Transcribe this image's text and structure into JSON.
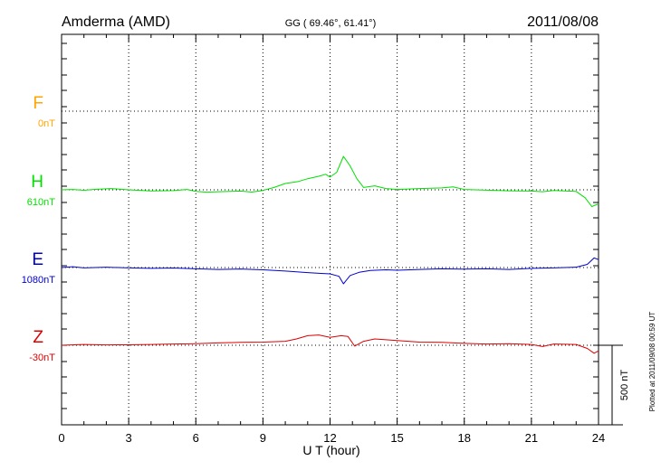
{
  "header": {
    "station": "Amderma (AMD)",
    "coords": "GG ( 69.46°,  61.41°)",
    "date": "2011/08/08"
  },
  "side_note": "Plotted at 2011/09/08 00:59 UT",
  "scale_label": "500 nT",
  "chart_data": {
    "type": "line",
    "xlabel": "U T (hour)",
    "xlim": [
      0,
      24
    ],
    "xticks": [
      0,
      3,
      6,
      9,
      12,
      15,
      18,
      21,
      24
    ],
    "xtick_labels": [
      "0",
      "3",
      "6",
      "9",
      "12",
      "15",
      "18",
      "21",
      "24"
    ],
    "grid": true,
    "scale_bar_nT": 500,
    "series": [
      {
        "name": "F",
        "base_label": "0nT",
        "color": "#ffa500",
        "baseline_nT": 0,
        "points": []
      },
      {
        "name": "H",
        "base_label": "610nT",
        "color": "#00e000",
        "baseline_nT": 610,
        "points": [
          [
            0,
            610
          ],
          [
            0.5,
            612
          ],
          [
            1,
            607
          ],
          [
            1.5,
            613
          ],
          [
            2.2,
            618
          ],
          [
            3,
            610
          ],
          [
            4,
            603
          ],
          [
            5,
            605
          ],
          [
            5.6,
            612
          ],
          [
            6,
            600
          ],
          [
            6.5,
            595
          ],
          [
            7,
            598
          ],
          [
            8,
            602
          ],
          [
            8.5,
            596
          ],
          [
            9,
            606
          ],
          [
            9.5,
            625
          ],
          [
            10,
            650
          ],
          [
            10.6,
            663
          ],
          [
            11,
            680
          ],
          [
            11.5,
            695
          ],
          [
            11.8,
            708
          ],
          [
            12,
            690
          ],
          [
            12.3,
            720
          ],
          [
            12.6,
            820
          ],
          [
            12.9,
            760
          ],
          [
            13.2,
            680
          ],
          [
            13.5,
            625
          ],
          [
            14,
            635
          ],
          [
            14.5,
            618
          ],
          [
            15,
            612
          ],
          [
            16,
            618
          ],
          [
            17,
            622
          ],
          [
            17.5,
            628
          ],
          [
            18,
            612
          ],
          [
            19,
            608
          ],
          [
            20,
            604
          ],
          [
            21,
            602
          ],
          [
            21.5,
            598
          ],
          [
            22,
            606
          ],
          [
            23,
            600
          ],
          [
            23.4,
            560
          ],
          [
            23.7,
            505
          ],
          [
            24,
            522
          ]
        ]
      },
      {
        "name": "E",
        "base_label": "1080nT",
        "color": "#0000cc",
        "baseline_nT": 1080,
        "points": [
          [
            0,
            1080
          ],
          [
            0.5,
            1085
          ],
          [
            1,
            1078
          ],
          [
            2,
            1082
          ],
          [
            3,
            1078
          ],
          [
            4,
            1075
          ],
          [
            5,
            1077
          ],
          [
            6,
            1072
          ],
          [
            7,
            1068
          ],
          [
            8,
            1071
          ],
          [
            9,
            1066
          ],
          [
            10,
            1058
          ],
          [
            11,
            1048
          ],
          [
            11.6,
            1043
          ],
          [
            12,
            1040
          ],
          [
            12.4,
            1025
          ],
          [
            12.6,
            978
          ],
          [
            12.9,
            1030
          ],
          [
            13.3,
            1050
          ],
          [
            13.8,
            1062
          ],
          [
            14.5,
            1066
          ],
          [
            15,
            1063
          ],
          [
            16,
            1068
          ],
          [
            17,
            1072
          ],
          [
            18,
            1070
          ],
          [
            19,
            1072
          ],
          [
            20,
            1068
          ],
          [
            21,
            1075
          ],
          [
            22,
            1078
          ],
          [
            23,
            1082
          ],
          [
            23.5,
            1100
          ],
          [
            23.8,
            1140
          ],
          [
            24,
            1130
          ]
        ]
      },
      {
        "name": "Z",
        "base_label": "-30nT",
        "color": "#dd0000",
        "baseline_nT": -30,
        "points": [
          [
            0,
            -30
          ],
          [
            1,
            -25
          ],
          [
            2,
            -28
          ],
          [
            3,
            -27
          ],
          [
            4,
            -25
          ],
          [
            5,
            -22
          ],
          [
            6,
            -20
          ],
          [
            7,
            -15
          ],
          [
            8,
            -12
          ],
          [
            9,
            -10
          ],
          [
            10,
            -5
          ],
          [
            10.5,
            10
          ],
          [
            11,
            30
          ],
          [
            11.5,
            35
          ],
          [
            12,
            20
          ],
          [
            12.5,
            30
          ],
          [
            12.8,
            25
          ],
          [
            13.1,
            -35
          ],
          [
            13.5,
            -5
          ],
          [
            14,
            10
          ],
          [
            15,
            0
          ],
          [
            16,
            -10
          ],
          [
            17,
            -12
          ],
          [
            18,
            -18
          ],
          [
            19,
            -22
          ],
          [
            20,
            -20
          ],
          [
            21,
            -25
          ],
          [
            21.5,
            -38
          ],
          [
            22,
            -22
          ],
          [
            23,
            -25
          ],
          [
            23.5,
            -50
          ],
          [
            23.8,
            -80
          ],
          [
            24,
            -65
          ]
        ]
      }
    ]
  }
}
